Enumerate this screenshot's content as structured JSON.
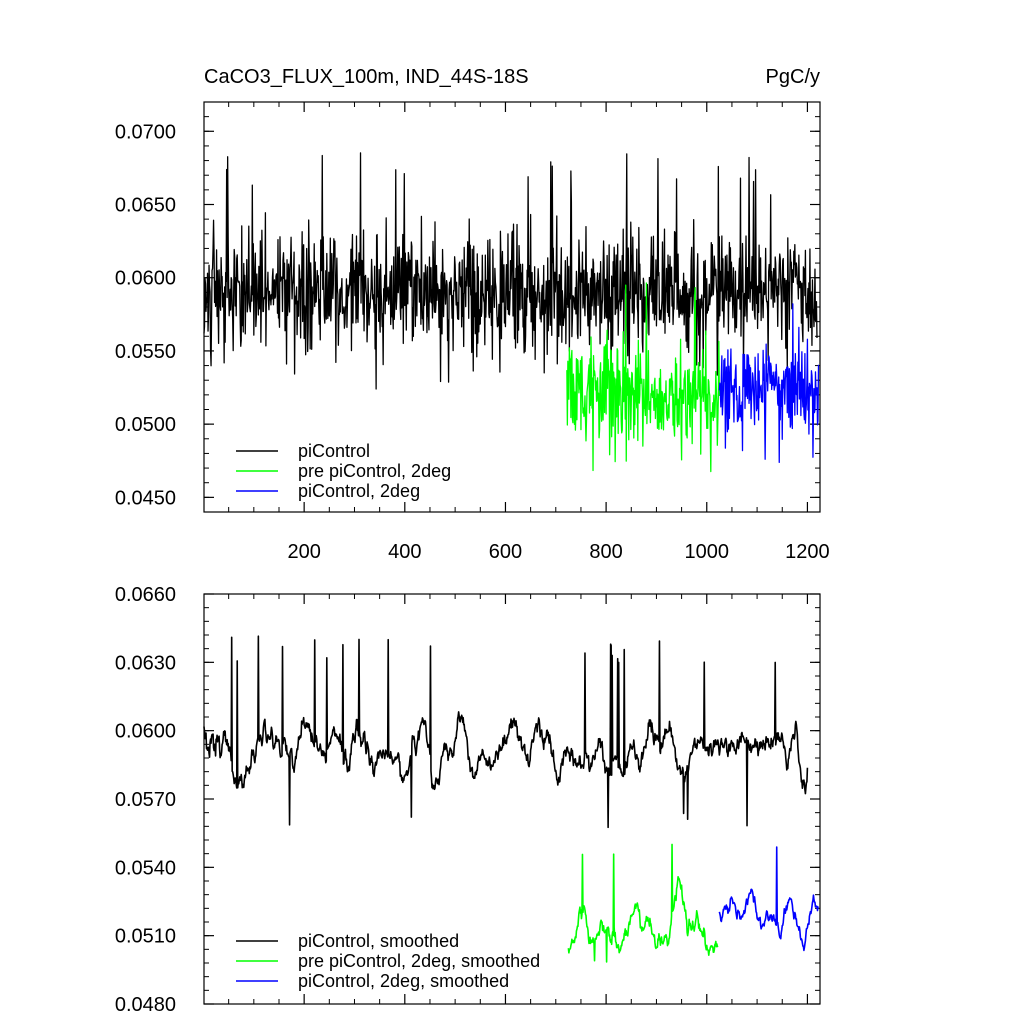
{
  "chart_data": [
    {
      "type": "line",
      "title": "CaCO3_FLUX_100m, IND_44S-18S",
      "units": "PgC/y",
      "xlim": [
        1,
        1225
      ],
      "ylim": [
        0.044,
        0.072
      ],
      "yticks": [
        0.045,
        0.05,
        0.055,
        0.06,
        0.065,
        0.07
      ],
      "ytick_labels": [
        "0.0450",
        "0.0500",
        "0.0550",
        "0.0600",
        "0.0650",
        "0.0700"
      ],
      "xticks": [
        200,
        400,
        600,
        800,
        1000,
        1200
      ],
      "xtick_labels": [
        "200",
        "400",
        "600",
        "800",
        "1000",
        "1200"
      ],
      "legend_position": "bottom-left",
      "series": [
        {
          "name": "piControl",
          "color": "#000000",
          "x_start": 1,
          "x_end": 1219,
          "mean": 0.059,
          "noise": 0.002,
          "spike_max": 0.0686,
          "spike_min": 0.0524
        },
        {
          "name": "pre piControl, 2deg",
          "color": "#00ff00",
          "x_start": 722,
          "x_end": 1025,
          "mean": 0.0518,
          "noise": 0.0018,
          "spike_max": 0.0603,
          "spike_min": 0.0467
        },
        {
          "name": "piControl, 2deg",
          "color": "#0000ff",
          "x_start": 1025,
          "x_end": 1222,
          "mean": 0.0523,
          "noise": 0.0017,
          "spike_max": 0.0598,
          "spike_min": 0.0471
        }
      ]
    },
    {
      "type": "line",
      "xlim": [
        1,
        1225
      ],
      "ylim": [
        0.048,
        0.066
      ],
      "yticks": [
        0.048,
        0.051,
        0.054,
        0.057,
        0.06,
        0.063,
        0.066
      ],
      "ytick_labels": [
        "0.0480",
        "0.0510",
        "0.0540",
        "0.0570",
        "0.0600",
        "0.0630",
        "0.0660"
      ],
      "xticks": [
        200,
        400,
        600,
        800,
        1000,
        1200
      ],
      "legend_position": "bottom-left",
      "series": [
        {
          "name": "piControl, smoothed",
          "color": "#000000",
          "x_start": 1,
          "x_end": 1200,
          "mean": 0.0592,
          "noise": 0.001,
          "spike_max": 0.0642,
          "spike_min": 0.0554
        },
        {
          "name": "pre piControl, 2deg, smoothed",
          "color": "#00ff00",
          "x_start": 725,
          "x_end": 1022,
          "mean": 0.0514,
          "noise": 0.0008,
          "spike_max": 0.0555,
          "spike_min": 0.0498
        },
        {
          "name": "piControl, 2deg, smoothed",
          "color": "#0000ff",
          "x_start": 1025,
          "x_end": 1222,
          "mean": 0.052,
          "noise": 0.0008,
          "spike_max": 0.0555,
          "spike_min": 0.0498
        }
      ]
    }
  ]
}
